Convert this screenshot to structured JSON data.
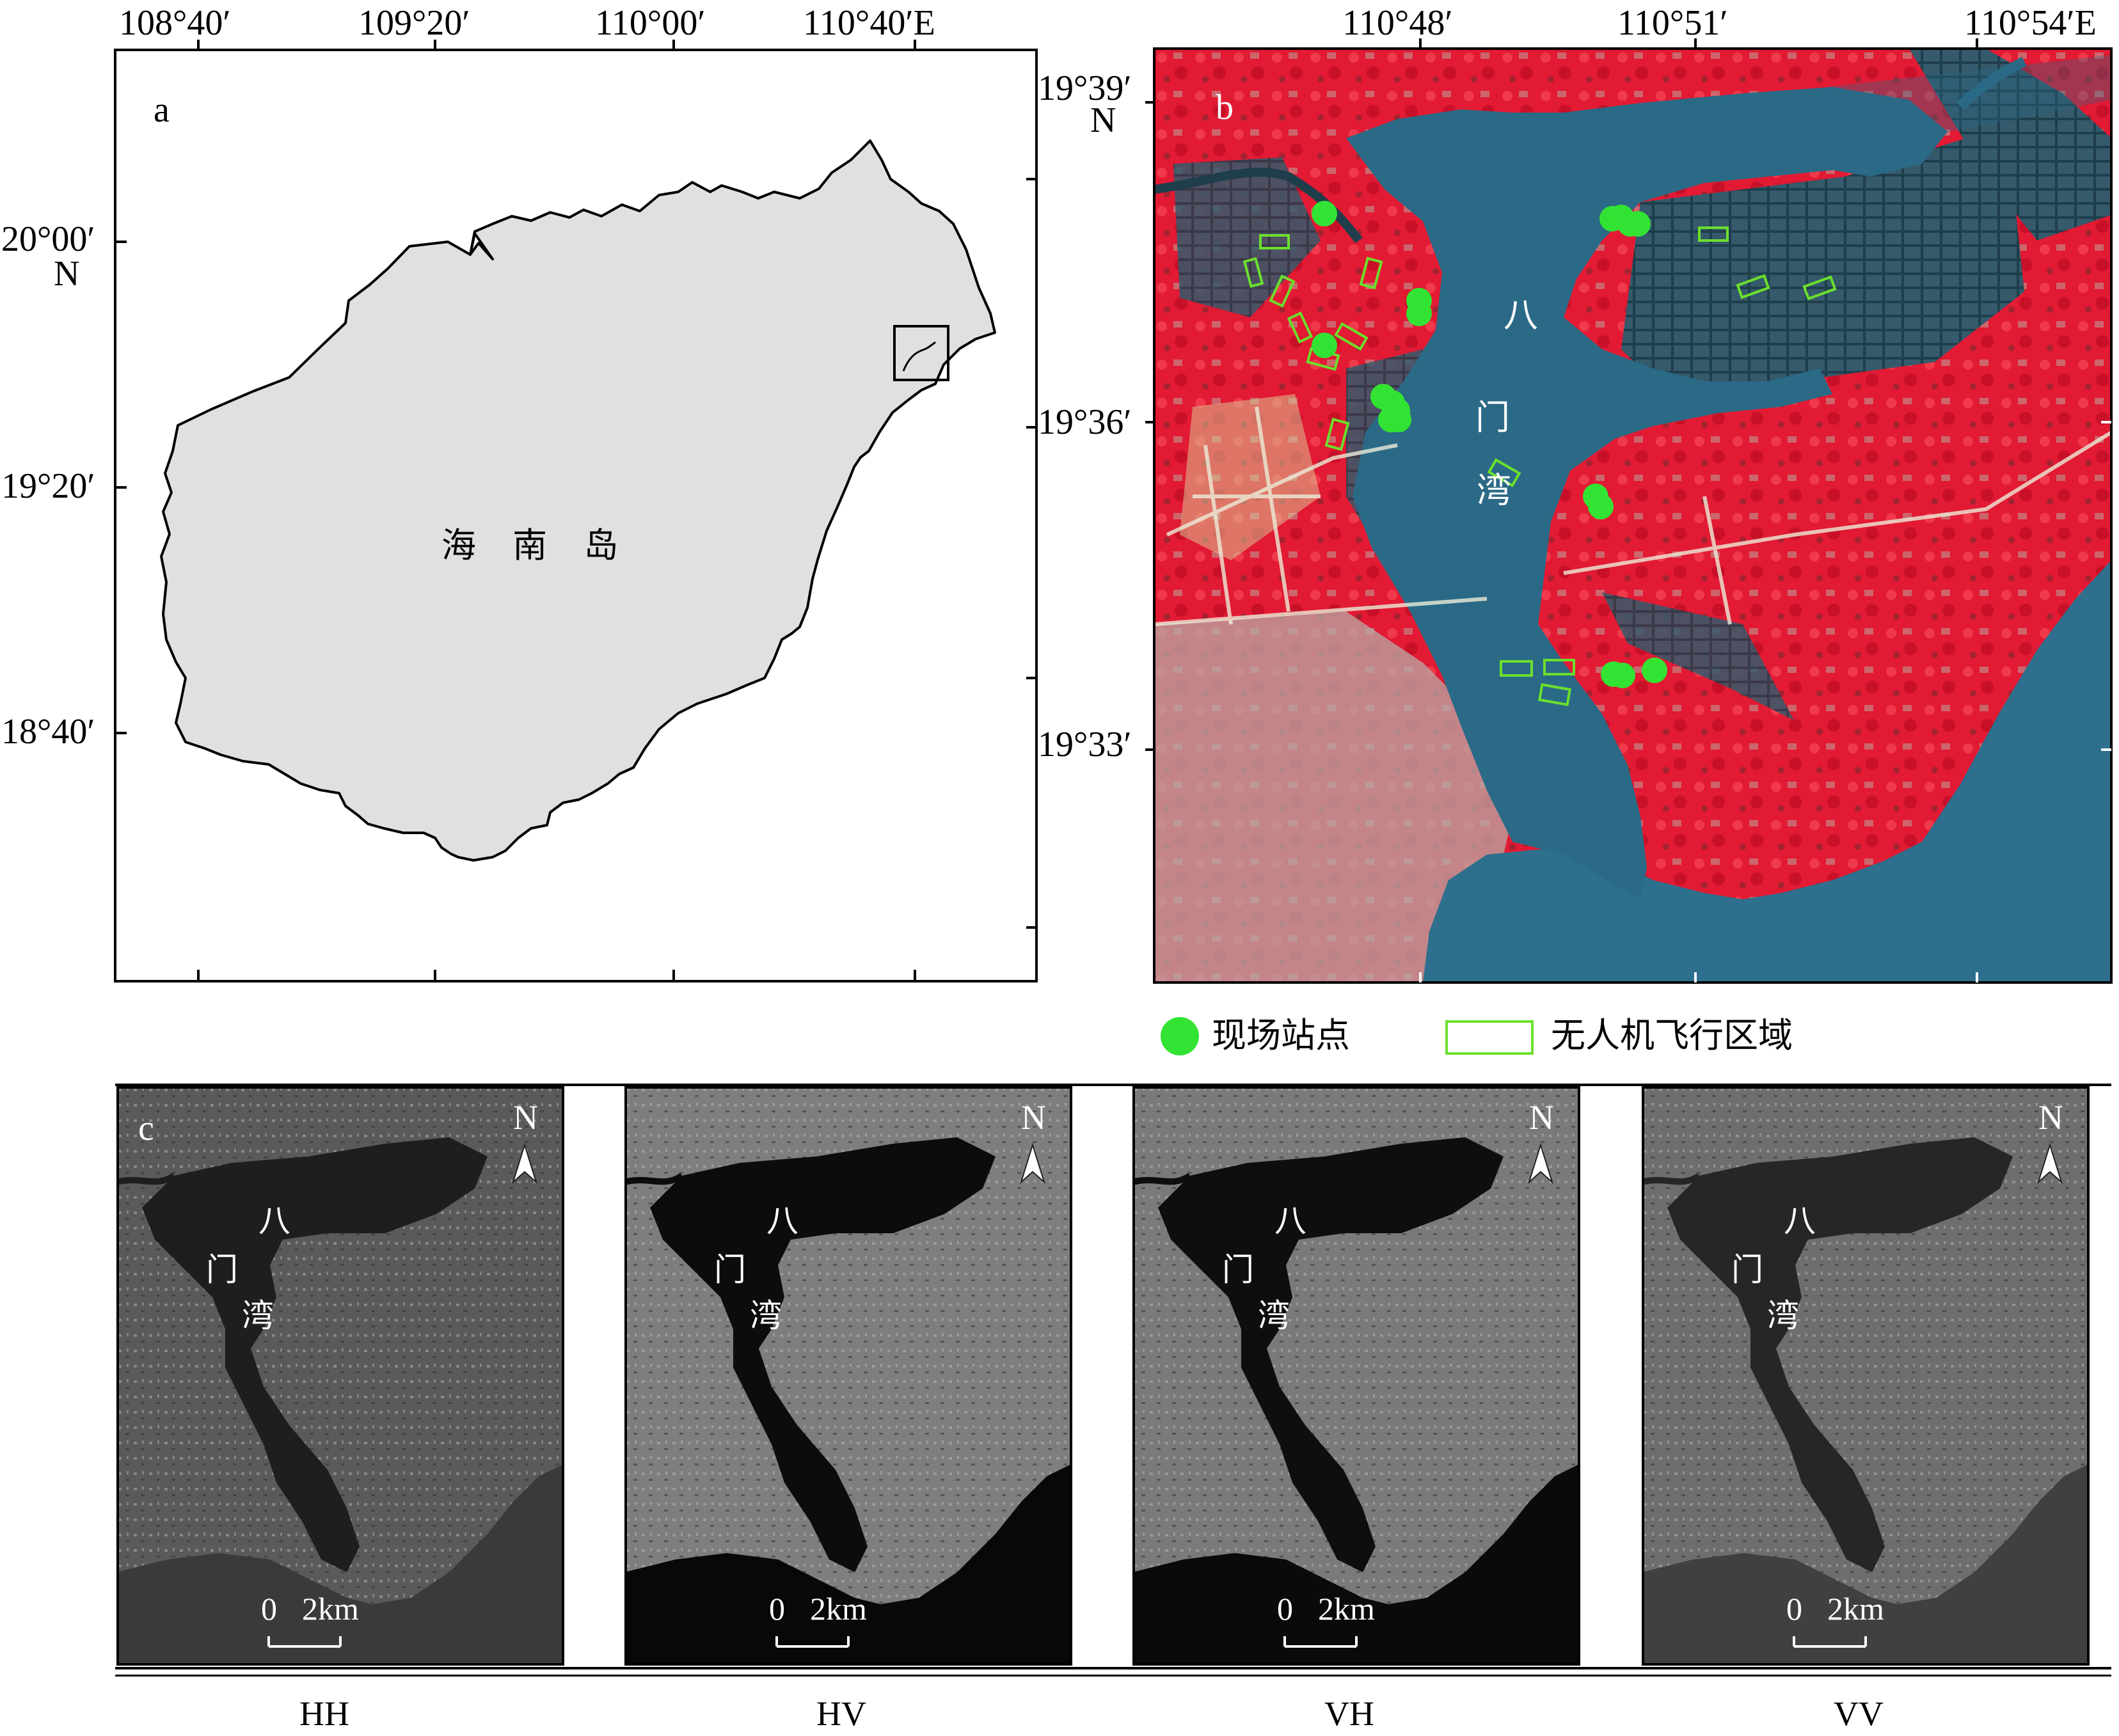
{
  "panel_a": {
    "letter": "a",
    "island_label": "海 南 岛",
    "top_ticks": [
      "108°40′",
      "109°20′",
      "110°00′",
      "110°40′E"
    ],
    "left_ticks": [
      "20°00′",
      "N",
      "19°20′",
      "18°40′"
    ]
  },
  "panel_b": {
    "letter": "b",
    "top_ticks": [
      "110°48′",
      "110°51′",
      "110°54′E"
    ],
    "left_ticks": [
      "19°39′",
      "N",
      "19°36′",
      "19°33′"
    ],
    "bay_label": [
      "八",
      "门",
      "湾"
    ],
    "colors": {
      "vegetation": "#e8102e",
      "water": "#2b6a86",
      "site": "#33e333",
      "uav_box": "#6be02c"
    }
  },
  "legend": {
    "site_label": "现场站点",
    "uav_label": "无人机飞行区域"
  },
  "panel_c": {
    "letter": "c",
    "north": "N",
    "bay_label": [
      "八",
      "门",
      "湾"
    ],
    "scale_zero": "0",
    "scale_km": "2km",
    "polarizations": [
      "HH",
      "HV",
      "VH",
      "VV"
    ]
  }
}
